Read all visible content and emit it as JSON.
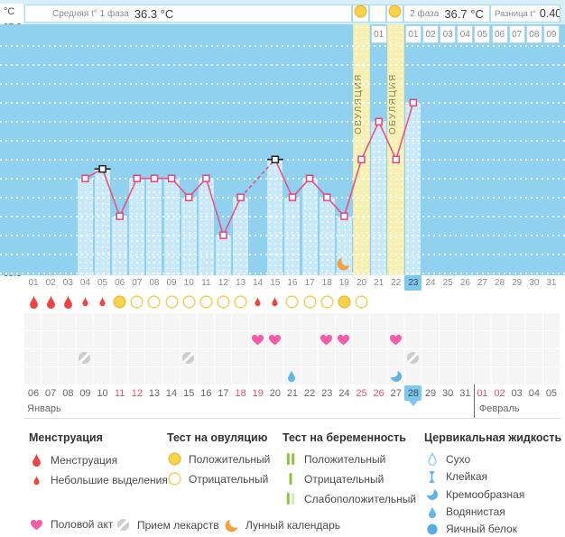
{
  "header": {
    "unit": "°C",
    "avg_phase1_label": "Средняя t° 1 фаза",
    "avg_phase1_value": "36.3 °C",
    "phase2_label": "2 фаза",
    "phase2_value": "36.7 °C",
    "diff_label": "Разница t°",
    "diff_value": "0.4000"
  },
  "chart_data": {
    "type": "line",
    "ylabel": "°C",
    "ylim": [
      35.9,
      37.2
    ],
    "ytick_step": 0.1,
    "x_cycle_days": 31,
    "selected_cycle_day": 23,
    "temperatures": [
      {
        "day": 4,
        "t": 36.4
      },
      {
        "day": 5,
        "t": 36.45,
        "flag": true
      },
      {
        "day": 6,
        "t": 36.2
      },
      {
        "day": 7,
        "t": 36.4
      },
      {
        "day": 8,
        "t": 36.4
      },
      {
        "day": 9,
        "t": 36.4
      },
      {
        "day": 10,
        "t": 36.3
      },
      {
        "day": 11,
        "t": 36.4
      },
      {
        "day": 12,
        "t": 36.1
      },
      {
        "day": 13,
        "t": 36.3
      },
      {
        "day": 15,
        "t": 36.5,
        "flag": true
      },
      {
        "day": 16,
        "t": 36.3
      },
      {
        "day": 17,
        "t": 36.4
      },
      {
        "day": 18,
        "t": 36.3
      },
      {
        "day": 19,
        "t": 36.2
      },
      {
        "day": 20,
        "t": 36.5
      },
      {
        "day": 21,
        "t": 36.7
      },
      {
        "day": 22,
        "t": 36.5
      },
      {
        "day": 23,
        "t": 36.8
      }
    ],
    "missing_day_style": "dashed",
    "ovulation_days": [
      20,
      22
    ],
    "ovulation_label": "ОВУЛЯЦИЯ",
    "dpo_cells": [
      {
        "day": 21,
        "label": "01"
      },
      {
        "day": 23,
        "label": "01"
      },
      {
        "day": 24,
        "label": "02"
      },
      {
        "day": 25,
        "label": "03"
      },
      {
        "day": 26,
        "label": "04"
      },
      {
        "day": 27,
        "label": "05"
      },
      {
        "day": 28,
        "label": "06"
      },
      {
        "day": 29,
        "label": "07"
      },
      {
        "day": 30,
        "label": "08"
      },
      {
        "day": 31,
        "label": "09"
      }
    ],
    "moon_day": 19,
    "marks_row": [
      {
        "day": 1,
        "icon": "drop-large"
      },
      {
        "day": 2,
        "icon": "drop-large"
      },
      {
        "day": 3,
        "icon": "drop-large"
      },
      {
        "day": 4,
        "icon": "drop-small"
      },
      {
        "day": 5,
        "icon": "drop-small"
      },
      {
        "day": 6,
        "icon": "test-pos"
      },
      {
        "day": 7,
        "icon": "test-neg"
      },
      {
        "day": 8,
        "icon": "test-neg"
      },
      {
        "day": 9,
        "icon": "test-neg"
      },
      {
        "day": 10,
        "icon": "test-neg"
      },
      {
        "day": 11,
        "icon": "test-neg"
      },
      {
        "day": 12,
        "icon": "test-neg"
      },
      {
        "day": 13,
        "icon": "test-neg"
      },
      {
        "day": 14,
        "icon": "drop-small"
      },
      {
        "day": 15,
        "icon": "drop-small"
      },
      {
        "day": 16,
        "icon": "test-neg"
      },
      {
        "day": 17,
        "icon": "test-neg"
      },
      {
        "day": 18,
        "icon": "test-neg"
      },
      {
        "day": 19,
        "icon": "test-pos"
      },
      {
        "day": 20,
        "icon": "test-neg"
      }
    ],
    "intercourse_days": [
      14,
      15,
      18,
      19,
      22
    ],
    "medication_days": [
      4,
      10,
      23
    ],
    "cervical_fluid": [
      {
        "day": 16,
        "icon": "cf-watery"
      },
      {
        "day": 22,
        "icon": "cf-creamy"
      }
    ]
  },
  "calendar": {
    "month1_label": "Январь",
    "month2_label": "Февраль",
    "month1_days_count": 26,
    "selected_date": "28",
    "dates": [
      {
        "d": "06"
      },
      {
        "d": "07"
      },
      {
        "d": "08"
      },
      {
        "d": "09"
      },
      {
        "d": "10"
      },
      {
        "d": "11",
        "red": true
      },
      {
        "d": "12",
        "red": true
      },
      {
        "d": "13"
      },
      {
        "d": "14"
      },
      {
        "d": "15"
      },
      {
        "d": "16"
      },
      {
        "d": "17"
      },
      {
        "d": "18",
        "red": true
      },
      {
        "d": "19",
        "red": true
      },
      {
        "d": "20"
      },
      {
        "d": "21"
      },
      {
        "d": "22"
      },
      {
        "d": "23"
      },
      {
        "d": "24"
      },
      {
        "d": "25",
        "red": true
      },
      {
        "d": "26",
        "red": true
      },
      {
        "d": "27"
      },
      {
        "d": "28",
        "selected": true
      },
      {
        "d": "29"
      },
      {
        "d": "30"
      },
      {
        "d": "31"
      },
      {
        "d": "01",
        "red": true
      },
      {
        "d": "02",
        "red": true
      },
      {
        "d": "03"
      },
      {
        "d": "04"
      },
      {
        "d": "05"
      }
    ]
  },
  "legend": {
    "sections": [
      {
        "title": "Менструация",
        "items": [
          {
            "icon": "drop-large",
            "label": "Менструация"
          },
          {
            "icon": "drop-small",
            "label": "Небольшие выделения"
          }
        ]
      },
      {
        "title": "Тест на овуляцию",
        "items": [
          {
            "icon": "test-pos",
            "label": "Положительный"
          },
          {
            "icon": "test-neg",
            "label": "Отрицательный"
          }
        ]
      },
      {
        "title": "Тест на беременность",
        "items": [
          {
            "icon": "preg-pos",
            "label": "Положительный"
          },
          {
            "icon": "preg-neg",
            "label": "Отрицательный"
          },
          {
            "icon": "preg-weak",
            "label": "Слабоположительный"
          }
        ]
      },
      {
        "title": "Цервикальная жидкость",
        "items": [
          {
            "icon": "cf-dry",
            "label": "Сухо"
          },
          {
            "icon": "cf-sticky",
            "label": "Клейкая"
          },
          {
            "icon": "cf-creamy",
            "label": "Кремообразная"
          },
          {
            "icon": "cf-watery",
            "label": "Водянистая"
          },
          {
            "icon": "cf-eggwhite",
            "label": "Яичный белок"
          }
        ]
      }
    ],
    "footer": [
      {
        "icon": "heart",
        "label": "Половой акт"
      },
      {
        "icon": "pill",
        "label": "Прием лекарств"
      },
      {
        "icon": "moon",
        "label": "Лунный календарь"
      }
    ]
  },
  "colors": {
    "chart_bg": "#8FD1EF",
    "bar": "#C9E9F9",
    "ovulation_col": "#F6F0B2",
    "line": "#EC5180",
    "marker_border": "#E8447A",
    "flag_marker": "#222222",
    "menses_red": "#ED4545",
    "test_yellow": "#F7D24B",
    "test_border": "#E9BD3E",
    "heart_pink": "#F45CA5",
    "pill_gray": "#CDCDCD",
    "moon_orange": "#F2A13D",
    "preg_green": "#8CC43F",
    "preg_pale": "#D7E8B8",
    "fluid_blue": "#5FB3E8",
    "highlight_blue": "#7CC8EE",
    "red_date": "#E8506E",
    "header_strip": "#D8EEF9"
  }
}
